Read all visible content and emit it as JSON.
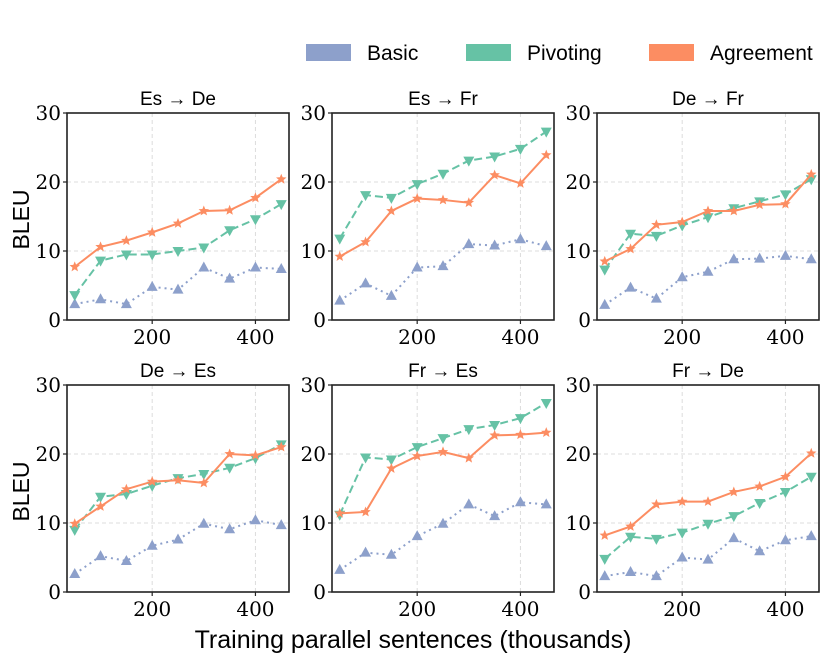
{
  "figure": {
    "xlabel": "Training parallel sentences (thousands)",
    "ylabel": "BLEU"
  },
  "legend": [
    {
      "name": "Basic",
      "color": "#8da0cb"
    },
    {
      "name": "Pivoting",
      "color": "#66c2a5"
    },
    {
      "name": "Agreement",
      "color": "#fc8d62"
    }
  ],
  "chart_data": [
    {
      "type": "line",
      "title": "Es → De",
      "xlabel": "Training parallel sentences (thousands)",
      "ylabel": "BLEU",
      "x": [
        50,
        100,
        150,
        200,
        250,
        300,
        350,
        400,
        450
      ],
      "xticks": [
        200,
        400
      ],
      "xlim": [
        35,
        465
      ],
      "ylim": [
        0,
        30
      ],
      "yticks": [
        0,
        10,
        20,
        30
      ],
      "grid": true,
      "series": [
        {
          "name": "Basic",
          "values": [
            2.3,
            3.0,
            2.3,
            4.8,
            4.4,
            7.6,
            6.0,
            7.6,
            7.4
          ]
        },
        {
          "name": "Pivoting",
          "values": [
            3.6,
            8.6,
            9.5,
            9.5,
            10.0,
            10.5,
            13.0,
            14.6,
            16.8
          ]
        },
        {
          "name": "Agreement",
          "values": [
            7.7,
            10.6,
            11.5,
            12.7,
            14.0,
            15.8,
            15.9,
            17.7,
            20.4
          ]
        }
      ]
    },
    {
      "type": "line",
      "title": "Es → Fr",
      "xlabel": "Training parallel sentences (thousands)",
      "ylabel": "BLEU",
      "x": [
        50,
        100,
        150,
        200,
        250,
        300,
        350,
        400,
        450
      ],
      "xticks": [
        200,
        400
      ],
      "xlim": [
        35,
        465
      ],
      "ylim": [
        0,
        30
      ],
      "yticks": [
        0,
        10,
        20,
        30
      ],
      "grid": true,
      "series": [
        {
          "name": "Basic",
          "values": [
            2.8,
            5.3,
            3.5,
            7.6,
            7.8,
            11.0,
            10.8,
            11.7,
            10.7
          ]
        },
        {
          "name": "Pivoting",
          "values": [
            11.8,
            18.1,
            17.7,
            19.7,
            21.2,
            23.1,
            23.7,
            24.8,
            27.3
          ]
        },
        {
          "name": "Agreement",
          "values": [
            9.2,
            11.3,
            15.8,
            17.6,
            17.4,
            17.0,
            21.0,
            19.8,
            23.9
          ]
        }
      ]
    },
    {
      "type": "line",
      "title": "De → Fr",
      "xlabel": "Training parallel sentences (thousands)",
      "ylabel": "BLEU",
      "x": [
        50,
        100,
        150,
        200,
        250,
        300,
        350,
        400,
        450
      ],
      "xticks": [
        200,
        400
      ],
      "xlim": [
        35,
        465
      ],
      "ylim": [
        0,
        30
      ],
      "yticks": [
        0,
        10,
        20,
        30
      ],
      "grid": true,
      "series": [
        {
          "name": "Basic",
          "values": [
            2.2,
            4.7,
            3.1,
            6.2,
            7.0,
            8.8,
            8.9,
            9.3,
            8.8
          ]
        },
        {
          "name": "Pivoting",
          "values": [
            7.3,
            12.5,
            12.2,
            13.7,
            14.9,
            16.2,
            17.2,
            18.2,
            20.4
          ]
        },
        {
          "name": "Agreement",
          "values": [
            8.5,
            10.3,
            13.8,
            14.2,
            15.8,
            15.8,
            16.7,
            16.8,
            21.1
          ]
        }
      ]
    },
    {
      "type": "line",
      "title": "De → Es",
      "xlabel": "Training parallel sentences (thousands)",
      "ylabel": "BLEU",
      "x": [
        50,
        100,
        150,
        200,
        250,
        300,
        350,
        400,
        450
      ],
      "xticks": [
        200,
        400
      ],
      "xlim": [
        35,
        465
      ],
      "ylim": [
        0,
        30
      ],
      "yticks": [
        0,
        10,
        20,
        30
      ],
      "grid": true,
      "series": [
        {
          "name": "Basic",
          "values": [
            2.6,
            5.2,
            4.5,
            6.7,
            7.6,
            9.9,
            9.1,
            10.4,
            9.7
          ]
        },
        {
          "name": "Pivoting",
          "values": [
            9.0,
            13.8,
            14.2,
            15.4,
            16.5,
            17.1,
            18.0,
            19.4,
            21.4
          ]
        },
        {
          "name": "Agreement",
          "values": [
            9.9,
            12.4,
            14.9,
            16.0,
            16.2,
            15.8,
            20.0,
            19.8,
            21.0
          ]
        }
      ]
    },
    {
      "type": "line",
      "title": "Fr → Es",
      "xlabel": "Training parallel sentences (thousands)",
      "ylabel": "BLEU",
      "x": [
        50,
        100,
        150,
        200,
        250,
        300,
        350,
        400,
        450
      ],
      "xticks": [
        200,
        400
      ],
      "xlim": [
        35,
        465
      ],
      "ylim": [
        0,
        30
      ],
      "yticks": [
        0,
        10,
        20,
        30
      ],
      "grid": true,
      "series": [
        {
          "name": "Basic",
          "values": [
            3.2,
            5.7,
            5.4,
            8.1,
            9.9,
            12.7,
            11.0,
            13.0,
            12.7
          ]
        },
        {
          "name": "Pivoting",
          "values": [
            11.2,
            19.5,
            19.2,
            21.0,
            22.3,
            23.6,
            24.2,
            25.2,
            27.4
          ]
        },
        {
          "name": "Agreement",
          "values": [
            11.4,
            11.6,
            17.9,
            19.7,
            20.3,
            19.4,
            22.7,
            22.8,
            23.1
          ]
        }
      ]
    },
    {
      "type": "line",
      "title": "Fr → De",
      "xlabel": "Training parallel sentences (thousands)",
      "ylabel": "BLEU",
      "x": [
        50,
        100,
        150,
        200,
        250,
        300,
        350,
        400,
        450
      ],
      "xticks": [
        200,
        400
      ],
      "xlim": [
        35,
        465
      ],
      "ylim": [
        0,
        30
      ],
      "yticks": [
        0,
        10,
        20,
        30
      ],
      "grid": true,
      "series": [
        {
          "name": "Basic",
          "values": [
            2.3,
            2.9,
            2.3,
            5.0,
            4.7,
            7.8,
            5.9,
            7.5,
            8.1
          ]
        },
        {
          "name": "Pivoting",
          "values": [
            4.8,
            8.0,
            7.7,
            8.6,
            9.9,
            11.0,
            12.9,
            14.5,
            16.7
          ]
        },
        {
          "name": "Agreement",
          "values": [
            8.2,
            9.5,
            12.7,
            13.1,
            13.1,
            14.5,
            15.3,
            16.7,
            20.1
          ]
        }
      ]
    }
  ]
}
